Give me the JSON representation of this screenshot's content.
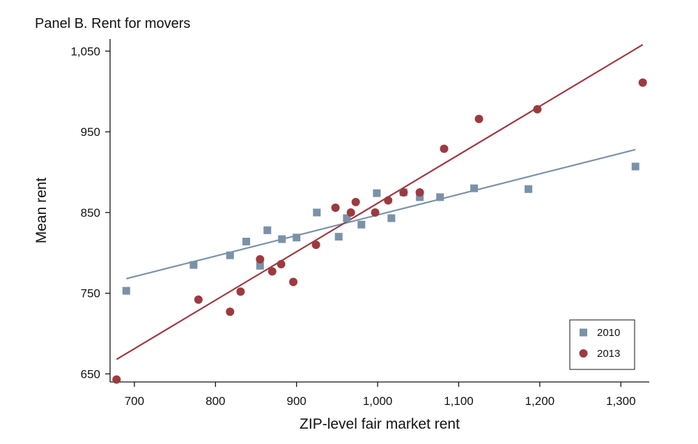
{
  "chart_data": {
    "type": "scatter",
    "title": "Panel B. Rent for movers",
    "xlabel": "ZIP-level fair market rent",
    "ylabel": "Mean rent",
    "xlim": [
      670,
      1335
    ],
    "ylim": [
      640,
      1065
    ],
    "xticks": [
      700,
      800,
      900,
      1000,
      1100,
      1200,
      1300
    ],
    "xtick_labels": [
      "700",
      "800",
      "900",
      "1,000",
      "1,100",
      "1,200",
      "1,300"
    ],
    "yticks": [
      650,
      750,
      850,
      950,
      1050
    ],
    "ytick_labels": [
      "650",
      "750",
      "850",
      "950",
      "1,050"
    ],
    "grid": false,
    "legend_position": "bottom-right",
    "series": [
      {
        "name": "2010",
        "marker": "square",
        "color": "#7a92a8",
        "points": [
          [
            690,
            753
          ],
          [
            773,
            785
          ],
          [
            818,
            797
          ],
          [
            838,
            814
          ],
          [
            855,
            784
          ],
          [
            864,
            828
          ],
          [
            882,
            817
          ],
          [
            900,
            819
          ],
          [
            925,
            850
          ],
          [
            952,
            820
          ],
          [
            962,
            843
          ],
          [
            980,
            835
          ],
          [
            999,
            874
          ],
          [
            1017,
            843
          ],
          [
            1032,
            875
          ],
          [
            1052,
            869
          ],
          [
            1077,
            869
          ],
          [
            1119,
            880
          ],
          [
            1186,
            879
          ],
          [
            1318,
            907
          ]
        ],
        "fit": {
          "x": [
            690,
            1318
          ],
          "y": [
            768,
            928
          ]
        }
      },
      {
        "name": "2013",
        "marker": "circle",
        "color": "#9c3a3f",
        "points": [
          [
            678,
            643
          ],
          [
            779,
            742
          ],
          [
            818,
            727
          ],
          [
            831,
            752
          ],
          [
            855,
            792
          ],
          [
            870,
            777
          ],
          [
            881,
            786
          ],
          [
            896,
            764
          ],
          [
            924,
            810
          ],
          [
            948,
            856
          ],
          [
            967,
            850
          ],
          [
            973,
            863
          ],
          [
            997,
            850
          ],
          [
            1013,
            865
          ],
          [
            1032,
            875
          ],
          [
            1052,
            875
          ],
          [
            1082,
            929
          ],
          [
            1125,
            966
          ],
          [
            1197,
            978
          ],
          [
            1327,
            1011
          ]
        ],
        "fit": {
          "x": [
            678,
            1327
          ],
          "y": [
            668,
            1058
          ]
        }
      }
    ]
  }
}
